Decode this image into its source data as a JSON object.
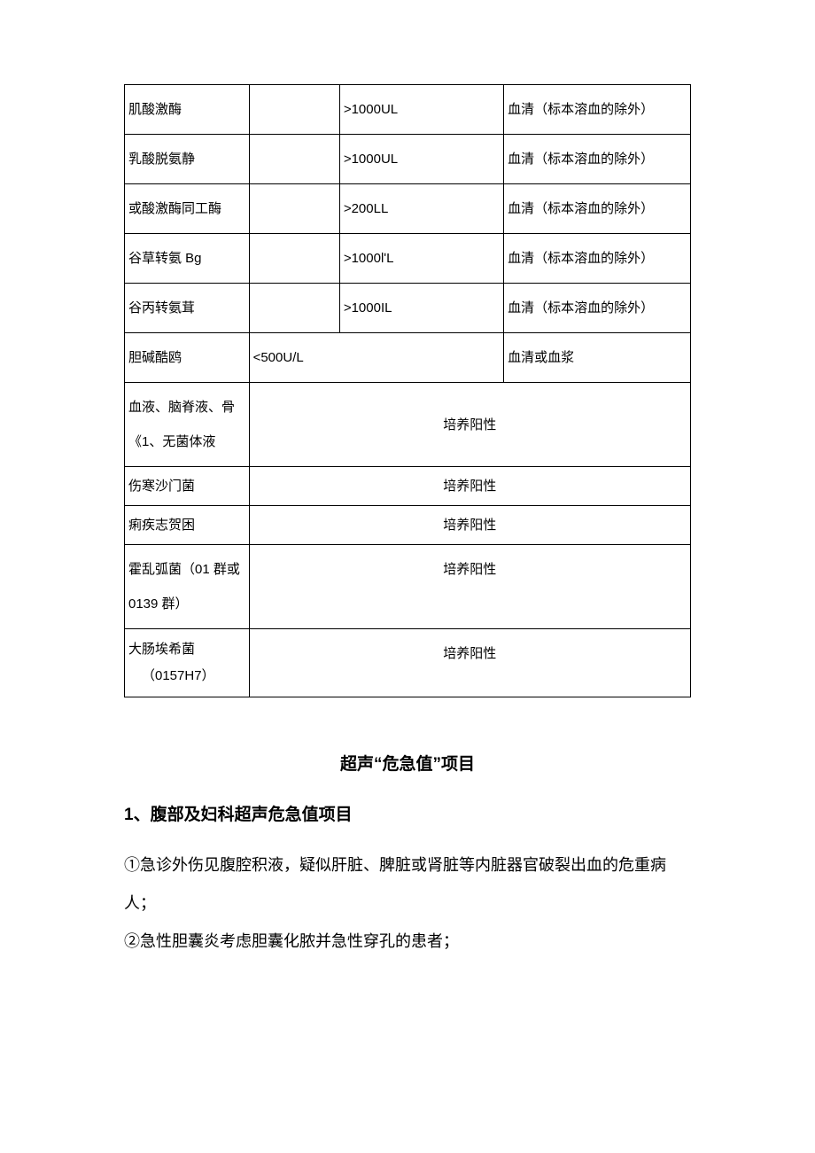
{
  "table": {
    "border_color": "#000000",
    "background_color": "#ffffff",
    "font_color": "#000000",
    "font_size_pt": 11,
    "line_height_ratio": 2.6,
    "col_widths_pct": [
      22,
      16,
      29,
      33
    ],
    "rows": [
      {
        "c1": "肌酸激酶",
        "c2": "",
        "c3": ">1000UL",
        "c4": "血清（标本溶血的除外）"
      },
      {
        "c1": "乳酸脱氨静",
        "c2": "",
        "c3": ">1000UL",
        "c4": "血清（标本溶血的除外）"
      },
      {
        "c1": "或酸激酶同工酶",
        "c2": "",
        "c3": ">200LL",
        "c4": "血清（标本溶血的除外）"
      },
      {
        "c1": "谷草转氨 Bg",
        "c2": "",
        "c3": ">1000lʹL",
        "c4": "血清（标本溶血的除外）"
      },
      {
        "c1": "谷丙转氨茸",
        "c2": "",
        "c3": ">1000IL",
        "c4": "血清（标本溶血的除外）"
      },
      {
        "c1": "胆碱酷鸥",
        "c2_merged": "<500U/L",
        "c4": "血清或血浆"
      },
      {
        "c1": "血液、脑脊液、骨《1、无菌体液",
        "merged": "培养阳性"
      },
      {
        "c1": "伤寒沙门菌",
        "merged": "培养阳性"
      },
      {
        "c1": "痢疾志贺困",
        "merged": "培养阳性"
      },
      {
        "c1": "霍乱弧菌（01 群或 0139 群）",
        "merged": "培养阳性"
      },
      {
        "c1_indent": "大肠埃希菌",
        "c1_sub": "（0157H7）",
        "merged": "培养阳性"
      }
    ]
  },
  "section_title": "超声“危急值”项目",
  "subsection_title": "1、腹部及妇科超声危急值项目",
  "body_lines": [
    "①急诊外伤见腹腔积液，疑似肝脏、脾脏或肾脏等内脏器官破裂出血的危重病人；",
    "②急性胆囊炎考虑胆囊化脓并急性穿孔的患者；"
  ],
  "styles": {
    "heading_fontsize_pt": 14,
    "body_fontsize_pt": 13,
    "text_color": "#000000"
  }
}
